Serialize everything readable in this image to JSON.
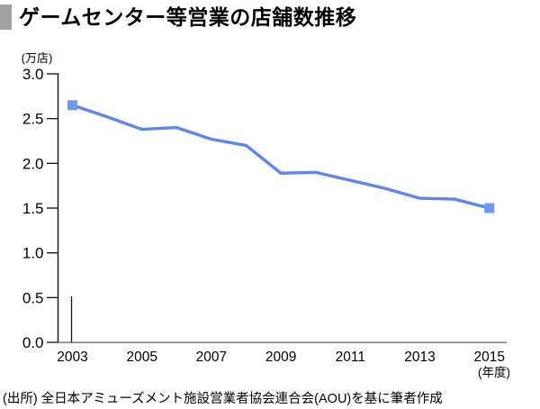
{
  "header": {
    "title": "ゲームセンター等営業の店舗数推移",
    "marker_color": "#a2a2a2"
  },
  "footer": {
    "source": "(出所) 全日本アミューズメント施設営業者協会連合会(AOU)を基に筆者作成"
  },
  "chart_data": {
    "type": "line",
    "title": "ゲームセンター等営業の店舗数推移",
    "x": [
      2003,
      2004,
      2005,
      2006,
      2007,
      2008,
      2009,
      2010,
      2011,
      2012,
      2013,
      2014,
      2015
    ],
    "values": [
      2.65,
      2.52,
      2.38,
      2.4,
      2.27,
      2.2,
      1.89,
      1.9,
      1.81,
      1.72,
      1.61,
      1.6,
      1.5
    ],
    "xlabel": "(年度)",
    "ylabel": "(万店)",
    "ylim": [
      0.0,
      3.0
    ],
    "ytick_step": 0.5,
    "y_ticks": [
      "0.0",
      "0.5",
      "1.0",
      "1.5",
      "2.0",
      "2.5",
      "3.0"
    ],
    "x_tick_labels": [
      "2003",
      "2005",
      "2007",
      "2009",
      "2011",
      "2013",
      "2015"
    ],
    "grid": "off",
    "legend": "none",
    "line_color": "#5f87eb",
    "marker_color": "#6e9af3",
    "marker_note": "square markers on first and last data points only",
    "yaxis_color": "#111111",
    "xaxis_color": "#6f6f6f"
  }
}
